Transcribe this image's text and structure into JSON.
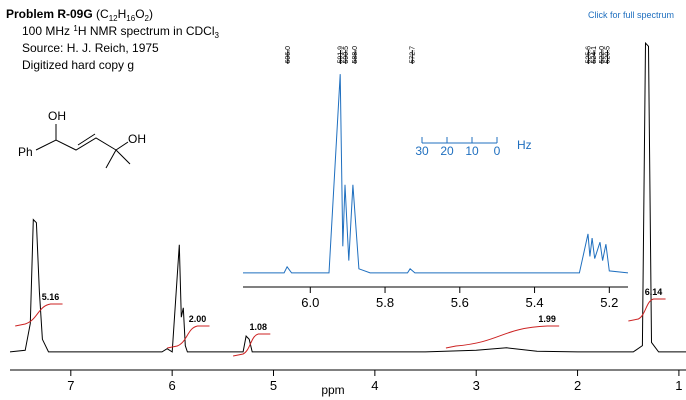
{
  "header": {
    "title": "Problem R-09G",
    "formula": [
      "(C",
      "12",
      "H",
      "16",
      "O",
      "2",
      ")"
    ],
    "line1": [
      "100 MHz ",
      "1",
      "H NMR spectrum in CDCl",
      "3"
    ],
    "line2": "Source: H. J. Reich, 1975",
    "line3": "Digitized hard copy g",
    "link": "Click for full spectrum"
  },
  "structure_labels": [
    "OH",
    "OH",
    "Ph"
  ],
  "chart_data": [
    {
      "type": "line",
      "xlabel": "ppm",
      "xlim": [
        7.6,
        0.93
      ],
      "ylim": [
        0,
        100
      ],
      "xticks": [
        7,
        6,
        5,
        4,
        3,
        2,
        1
      ],
      "color": "#000000",
      "x": [
        7.6,
        7.45,
        7.4,
        7.37,
        7.34,
        7.31,
        7.28,
        7.22,
        6.1,
        6.05,
        6.0,
        5.93,
        5.91,
        5.89,
        5.87,
        5.85,
        5.3,
        5.27,
        5.24,
        5.21,
        3.5,
        3.0,
        2.7,
        2.4,
        2.0,
        1.45,
        1.36,
        1.33,
        1.3,
        1.27,
        1.2,
        0.93
      ],
      "values": [
        1,
        1.5,
        10,
        43,
        42,
        20,
        5,
        1,
        1,
        2,
        1,
        35,
        12,
        15,
        3,
        1,
        1,
        6,
        5,
        1,
        1,
        1.5,
        2.3,
        1.2,
        1,
        1,
        3,
        99,
        98,
        4,
        1,
        1
      ],
      "integrals": [
        "5.16",
        "2.00",
        "1.08",
        "1.99",
        "6.14"
      ]
    },
    {
      "type": "line",
      "xlim": [
        6.18,
        5.15
      ],
      "ylim": [
        0,
        100
      ],
      "color": "#1f6fbf",
      "xticks": [
        {
          "value": 6,
          "label": "6.0"
        },
        {
          "value": 5.8,
          "label": "5.8"
        },
        {
          "value": 5.6,
          "label": "5.6"
        },
        {
          "value": 5.4,
          "label": "5.4"
        },
        {
          "value": 5.2,
          "label": "5.2"
        }
      ],
      "x": [
        6.18,
        6.07,
        6.062,
        6.05,
        5.95,
        5.92,
        5.913,
        5.907,
        5.897,
        5.886,
        5.87,
        5.84,
        5.74,
        5.733,
        5.72,
        5.28,
        5.257,
        5.252,
        5.246,
        5.239,
        5.225,
        5.218,
        5.209,
        5.2,
        5.15
      ],
      "values": [
        2,
        2,
        5,
        2,
        2,
        99,
        15,
        45,
        8,
        45,
        4,
        2,
        2,
        4,
        2,
        2,
        21,
        10,
        19,
        9,
        17,
        8,
        16,
        3,
        2
      ],
      "frequency_mhz": 100,
      "peak_labels": [
        {
          "value": 606.0,
          "label": "606.0"
        },
        {
          "value": 591.9,
          "label": "591.9"
        },
        {
          "value": 590.5,
          "label": "590.5"
        },
        {
          "value": 588.0,
          "label": "588.0"
        },
        {
          "value": 572.7,
          "label": "572.7"
        },
        {
          "value": 525.6,
          "label": "525.6"
        },
        {
          "value": 524.1,
          "label": "524.1"
        },
        {
          "value": 522.0,
          "label": "522.0"
        },
        {
          "value": 520.5,
          "label": "520.5"
        }
      ],
      "hz_ticks": [
        30,
        20,
        10,
        0
      ],
      "hz_unit": "Hz"
    }
  ]
}
